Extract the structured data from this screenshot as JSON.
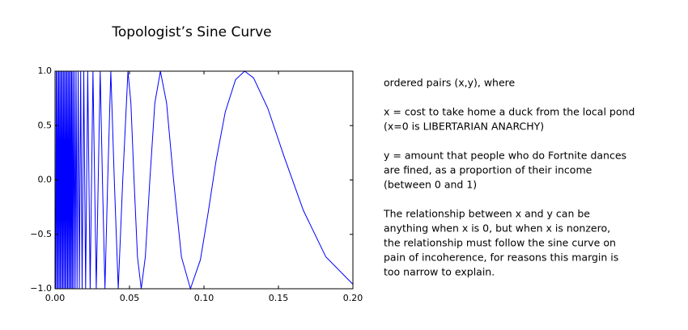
{
  "chart_data": {
    "type": "line",
    "title": "Topologist’s Sine Curve",
    "series": [
      {
        "color": "#0000ff",
        "x": [
          0.0004,
          0.0008,
          0.0012,
          0.0016,
          0.002,
          0.0024,
          0.0028,
          0.0032,
          0.0036,
          0.004,
          0.0044,
          0.0048,
          0.0052,
          0.0056,
          0.006,
          0.0064,
          0.0068,
          0.0072,
          0.0076,
          0.008,
          0.0084,
          0.0088,
          0.0092,
          0.0096,
          0.01,
          0.0104,
          0.0108,
          0.01117,
          0.01157,
          0.01201,
          0.01248,
          0.01299,
          0.01355,
          0.01415,
          0.01481,
          0.01553,
          0.01632,
          0.01721,
          0.01819,
          0.01929,
          0.02054,
          0.02195,
          0.02358,
          0.02546,
          0.02768,
          0.03032,
          0.03183,
          0.03351,
          0.03537,
          0.03745,
          0.03979,
          0.04244,
          0.04547,
          0.04897,
          0.05093,
          0.05305,
          0.05536,
          0.05787,
          0.06063,
          0.06366,
          0.06701,
          0.07074,
          0.0749,
          0.07958,
          0.08488,
          0.0909,
          0.0976,
          0.1026,
          0.1081,
          0.1143,
          0.1212,
          0.1273,
          0.1333,
          0.1429,
          0.1538,
          0.1667,
          0.1818,
          0.2
        ],
        "values": [
          -1,
          1,
          -1,
          1,
          -1,
          1,
          -1,
          1,
          -1,
          1,
          -1,
          1,
          -1,
          1,
          -1,
          1,
          -1,
          1,
          -1,
          1,
          -1,
          1,
          -1,
          1,
          -1,
          1,
          -1,
          1,
          -1,
          1,
          -1,
          1,
          -1,
          1,
          -1,
          1,
          -1,
          1,
          -1,
          1,
          -1,
          1,
          -1,
          1,
          -1,
          1,
          0,
          -1,
          0,
          1,
          0,
          -1,
          0,
          1,
          0.707,
          0,
          -0.707,
          -1,
          -0.707,
          0,
          0.707,
          1,
          0.707,
          0,
          -0.707,
          -1,
          -0.734,
          -0.32,
          0.174,
          0.625,
          0.922,
          1,
          0.938,
          0.657,
          0.215,
          -0.279,
          -0.706,
          -0.959
        ]
      }
    ],
    "xlim": [
      0,
      0.2
    ],
    "xticks": [
      {
        "value": 0,
        "label": "0.00"
      },
      {
        "value": 0.05,
        "label": "0.05"
      },
      {
        "value": 0.1,
        "label": "0.10"
      },
      {
        "value": 0.15,
        "label": "0.15"
      },
      {
        "value": 0.2,
        "label": "0.20"
      }
    ],
    "ylim": [
      -1,
      1
    ],
    "yticks": [
      {
        "value": -1,
        "label": "−1.0"
      },
      {
        "value": -0.5,
        "label": "−0.5"
      },
      {
        "value": 0,
        "label": "0.0"
      },
      {
        "value": 0.5,
        "label": "0.5"
      },
      {
        "value": 1,
        "label": "1.0"
      }
    ],
    "grid": false
  },
  "caption": {
    "paragraphs": [
      [
        "ordered pairs (x,y), where"
      ],
      [
        "x = cost to take home a duck from the local pond",
        "(x=0 is LIBERTARIAN ANARCHY)"
      ],
      [
        "y = amount that people who do Fortnite dances",
        "are fined, as a proportion of their income",
        "(between 0 and 1)"
      ],
      [
        "The relationship between x and y can be",
        "anything when x is 0, but when x is nonzero,",
        "the relationship must follow the sine curve on",
        "pain of incoherence, for reasons this margin is",
        "too narrow to explain."
      ]
    ]
  }
}
